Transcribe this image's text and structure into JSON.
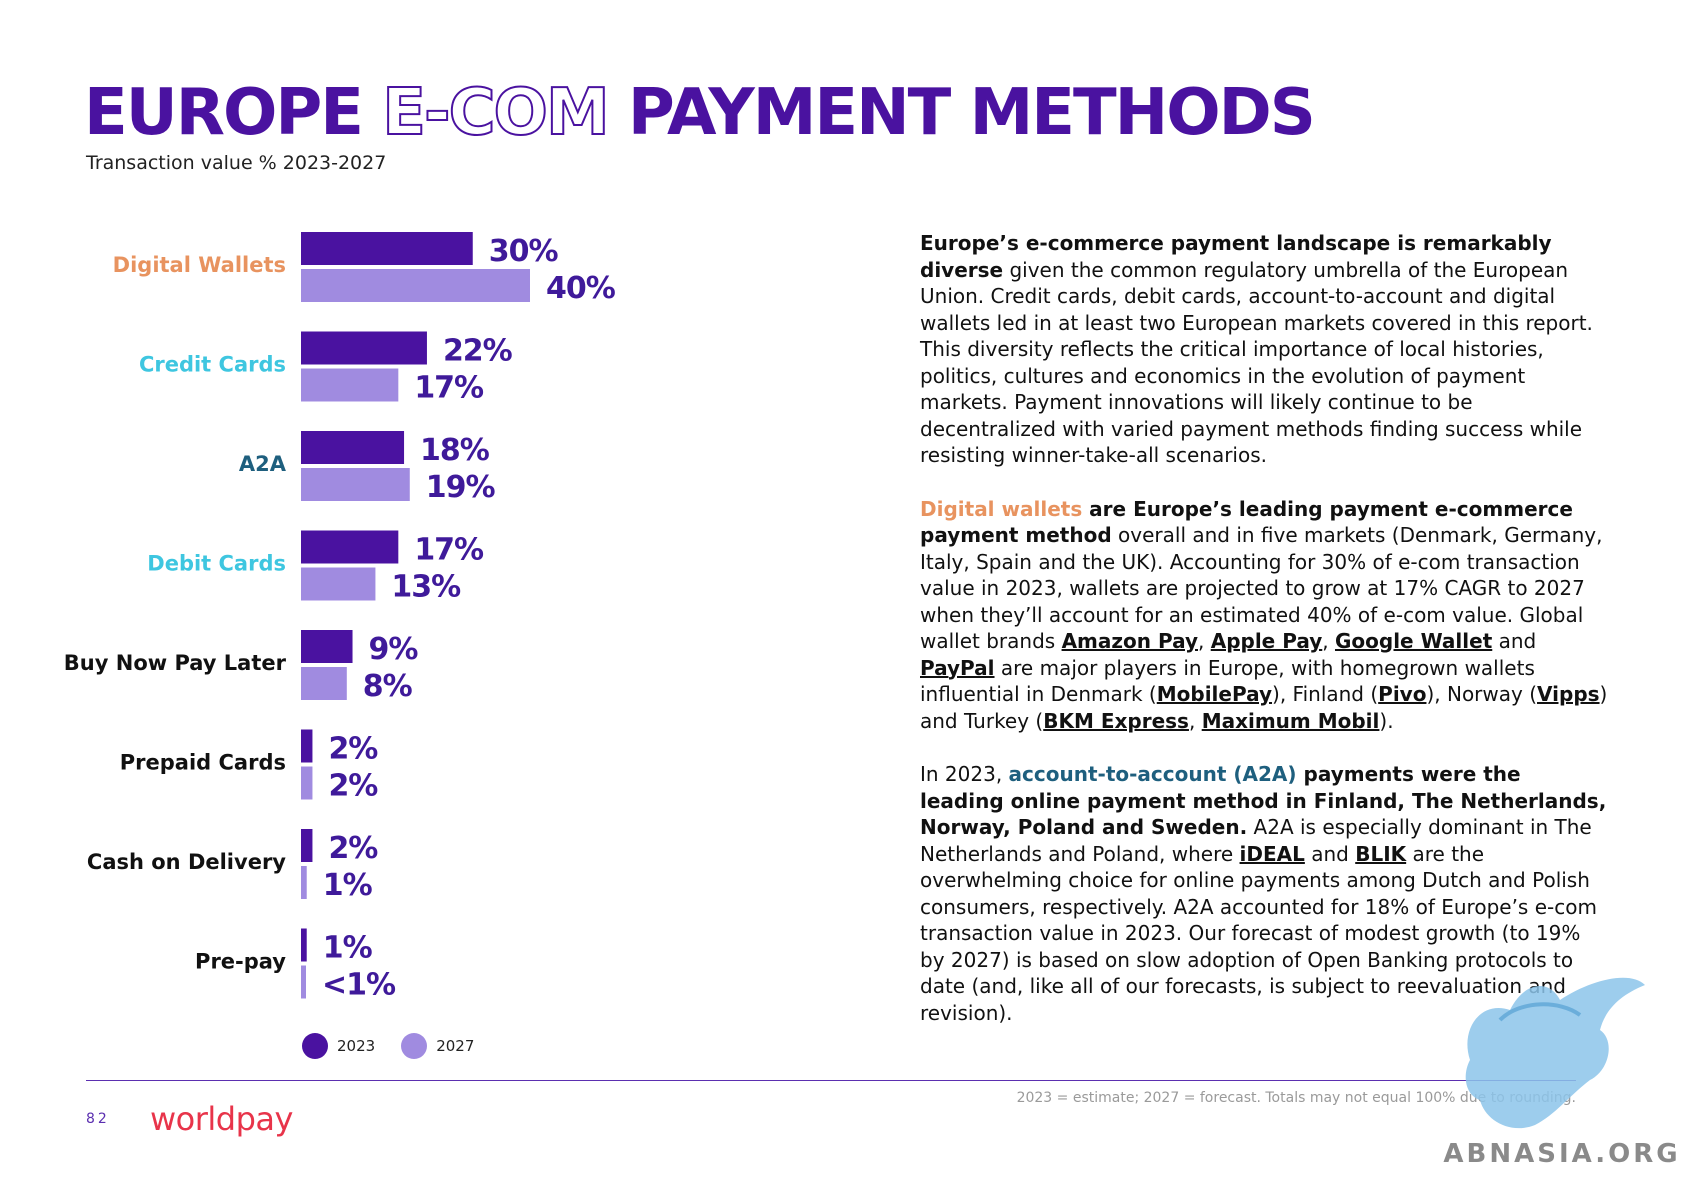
{
  "header": {
    "title_part1": "EUROPE",
    "title_part2": "E-COM",
    "title_part3": "PAYMENT METHODS",
    "subtitle": "Transaction value % 2023-2027"
  },
  "colors": {
    "series_2023": "#4a12a0",
    "series_2027": "#a08be0",
    "digital_wallets": "#e8935f",
    "credit_cards": "#3ec6e0",
    "a2a": "#1e5f7e",
    "debit_cards": "#3ec6e0",
    "neutral": "#111111",
    "accent": "#5b2fb0",
    "brand": "#e8344a"
  },
  "chart_data": {
    "type": "bar",
    "orientation": "horizontal",
    "title": "EUROPE E-COM PAYMENT METHODS",
    "subtitle": "Transaction value % 2023-2027",
    "categories": [
      "Digital Wallets",
      "Credit Cards",
      "A2A",
      "Debit Cards",
      "Buy Now Pay Later",
      "Prepaid Cards",
      "Cash on Delivery",
      "Pre-pay"
    ],
    "category_colors": [
      "#e8935f",
      "#3ec6e0",
      "#1e5f7e",
      "#3ec6e0",
      "#111111",
      "#111111",
      "#111111",
      "#111111"
    ],
    "series": [
      {
        "name": "2023",
        "color": "#4a12a0",
        "values": [
          30,
          22,
          18,
          17,
          9,
          2,
          2,
          1
        ],
        "labels": [
          "30%",
          "22%",
          "18%",
          "17%",
          "9%",
          "2%",
          "2%",
          "1%"
        ]
      },
      {
        "name": "2027",
        "color": "#a08be0",
        "values": [
          40,
          17,
          19,
          13,
          8,
          2,
          1,
          0.5
        ],
        "labels": [
          "40%",
          "17%",
          "19%",
          "13%",
          "8%",
          "2%",
          "1%",
          "<1%"
        ]
      }
    ],
    "xlim": [
      0,
      40
    ],
    "legend_position": "bottom-left",
    "grid": false
  },
  "legend": {
    "label_2023": "2023",
    "label_2027": "2027"
  },
  "body": {
    "p1_bold": "Europe’s e-commerce payment landscape is remarkably diverse",
    "p1_text": " given the common regulatory umbrella of the European Union. Credit cards, debit cards, account-to-account and digital wallets led in at least two European markets covered in this report. This diversity reflects the critical importance of local histories, politics, cultures and economics in the evolution of payment markets. Payment innovations will likely continue to be decentralized with varied payment methods finding success while resisting winner-take-all scenarios.",
    "p2_hl": "Digital wallets",
    "p2_bold": " are Europe’s leading payment e-commerce payment method",
    "p2_text1": " overall and in five markets (Denmark, Germany, Italy, Spain and the UK). Accounting for 30% of e-com transaction value in 2023, wallets are projected to grow at 17% CAGR to 2027 when they’ll account for an estimated 40% of e-com value. Global wallet brands ",
    "brand_amazon": "Amazon Pay",
    "sep_comma1": ", ",
    "brand_apple": "Apple Pay",
    "sep_comma2": ", ",
    "brand_google": "Google Wallet",
    "sep_and1": " and ",
    "brand_paypal": "PayPal",
    "p2_text2": " are major players in Europe, with homegrown wallets influential in Denmark (",
    "brand_mobilepay": "MobilePay",
    "p2_text3": "), Finland (",
    "brand_pivo": "Pivo",
    "p2_text4": "), Norway (",
    "brand_vipps": "Vipps",
    "p2_text5": ") and Turkey (",
    "brand_bkm": "BKM Express",
    "sep_comma3": ", ",
    "brand_maximum": "Maximum Mobil",
    "p2_text6": ").",
    "p3_text1": "In 2023, ",
    "p3_hl": "account-to-account (A2A)",
    "p3_bold": " payments were the leading online payment method in Finland, The Netherlands, Norway, Poland and Sweden.",
    "p3_text2": " A2A is especially dominant in The Netherlands and Poland, where ",
    "brand_ideal": "iDEAL",
    "sep_and2": " and ",
    "brand_blik": "BLIK",
    "p3_text3": " are the overwhelming choice for online payments among Dutch and Polish consumers, respectively. A2A accounted for 18% of Europe’s e-com transaction value in 2023. Our forecast of modest growth (to 19% by 2027) is based on slow adoption of Open Banking protocols to date (and, like all of our forecasts, is subject to reevaluation and revision)."
  },
  "footer": {
    "footnote": "2023 = estimate; 2027 = forecast. Totals may not equal 100% due to rounding.",
    "page_number": "82",
    "logo_text": "worldpay",
    "watermark_text": "ABNASIA.ORG"
  }
}
